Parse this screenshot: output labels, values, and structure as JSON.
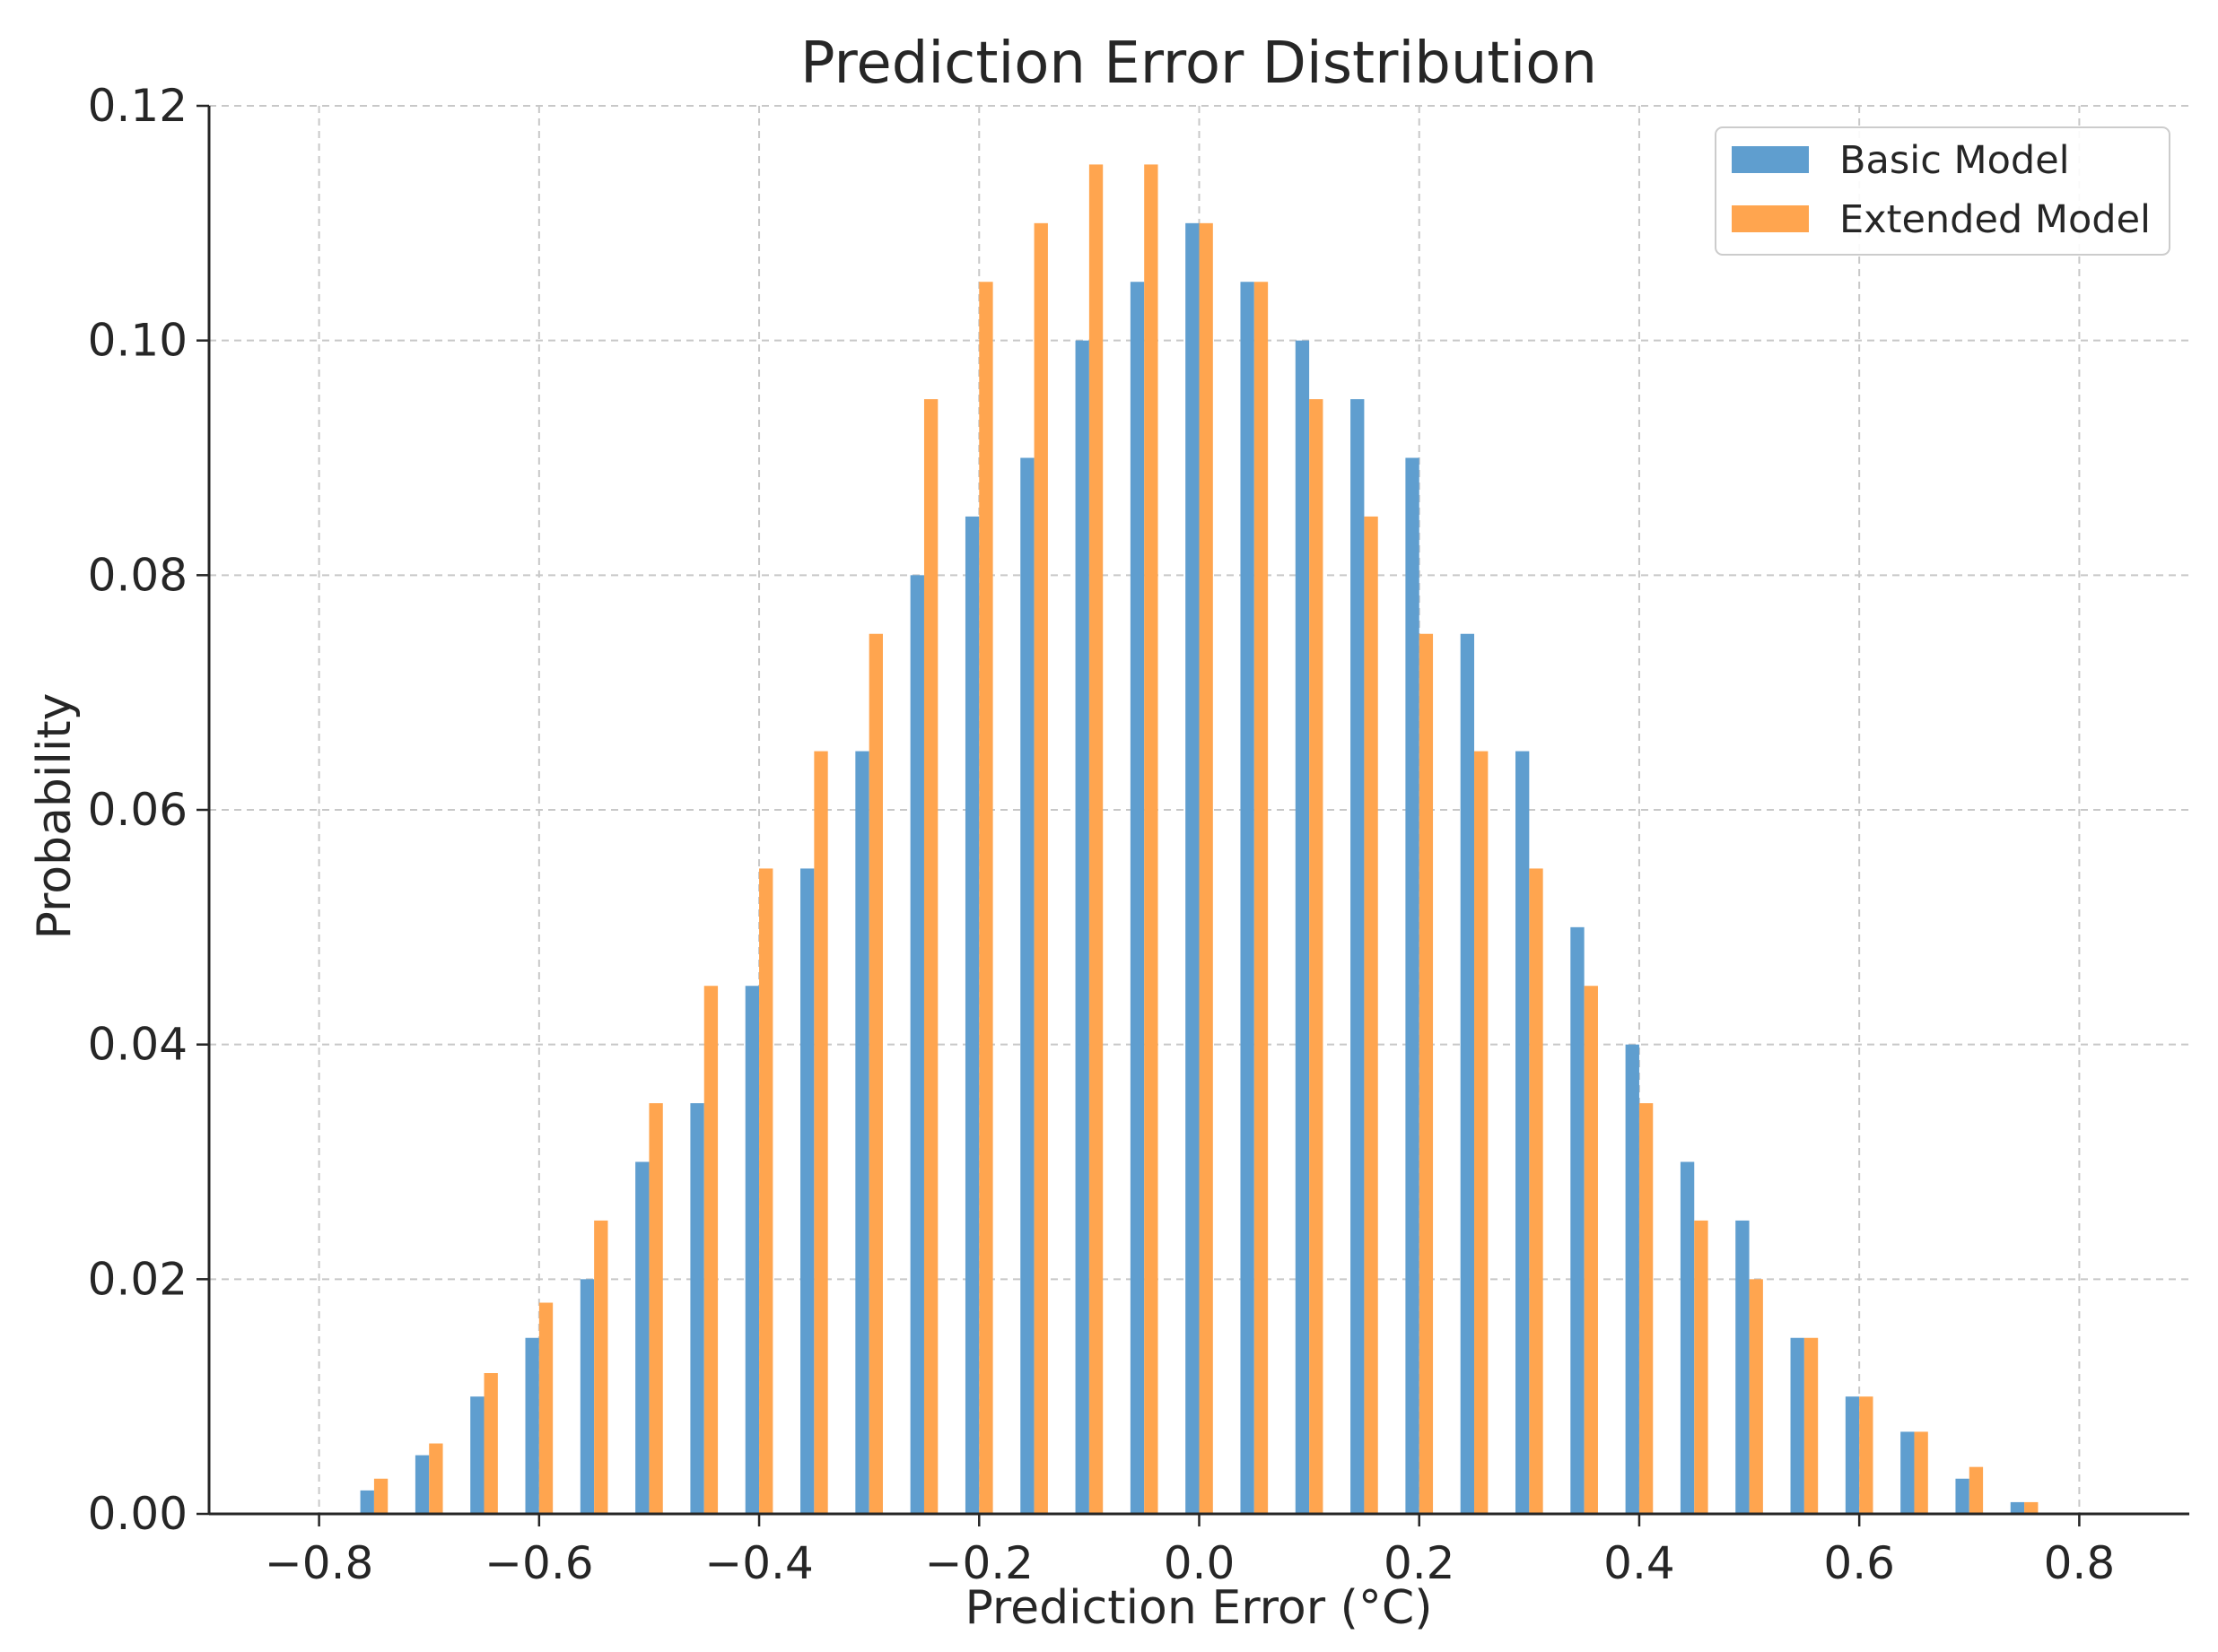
{
  "chart_data": {
    "type": "bar",
    "title": "Prediction Error Distribution",
    "xlabel": "Prediction Error (°C)",
    "ylabel": "Probability",
    "xlim": [
      -0.9,
      0.9
    ],
    "ylim": [
      0.0,
      0.12
    ],
    "xticks": [
      -0.8,
      -0.6,
      -0.4,
      -0.2,
      0.0,
      0.2,
      0.4,
      0.6,
      0.8
    ],
    "xtick_labels": [
      "−0.8",
      "−0.6",
      "−0.4",
      "−0.2",
      "0.0",
      "0.2",
      "0.4",
      "0.6",
      "0.8"
    ],
    "yticks": [
      0.0,
      0.02,
      0.04,
      0.06,
      0.08,
      0.1,
      0.12
    ],
    "ytick_labels": [
      "0.00",
      "0.02",
      "0.04",
      "0.06",
      "0.08",
      "0.10",
      "0.12"
    ],
    "grid": true,
    "legend_position": "top-right",
    "bin_centers": [
      -0.75,
      -0.7,
      -0.65,
      -0.6,
      -0.55,
      -0.5,
      -0.45,
      -0.4,
      -0.35,
      -0.3,
      -0.25,
      -0.2,
      -0.15,
      -0.1,
      -0.05,
      0.0,
      0.05,
      0.1,
      0.15,
      0.2,
      0.25,
      0.3,
      0.35,
      0.4,
      0.45,
      0.5,
      0.55,
      0.6,
      0.65,
      0.7,
      0.75,
      0.8
    ],
    "bar_width": 0.0125,
    "series": [
      {
        "name": "Basic Model",
        "color": "#5f9ecf",
        "offset": -0.00625,
        "values": [
          0.002,
          0.005,
          0.01,
          0.015,
          0.02,
          0.03,
          0.035,
          0.045,
          0.055,
          0.065,
          0.08,
          0.085,
          0.09,
          0.1,
          0.105,
          0.11,
          0.105,
          0.1,
          0.095,
          0.09,
          0.075,
          0.065,
          0.05,
          0.04,
          0.03,
          0.025,
          0.015,
          0.01,
          0.007,
          0.003,
          0.001,
          0.0
        ]
      },
      {
        "name": "Extended Model",
        "color": "#ffa54f",
        "offset": 0.00625,
        "values": [
          0.003,
          0.006,
          0.012,
          0.018,
          0.025,
          0.035,
          0.045,
          0.055,
          0.065,
          0.075,
          0.095,
          0.105,
          0.11,
          0.115,
          0.115,
          0.11,
          0.105,
          0.095,
          0.085,
          0.075,
          0.065,
          0.055,
          0.045,
          0.035,
          0.025,
          0.02,
          0.015,
          0.01,
          0.007,
          0.004,
          0.001,
          0.0
        ]
      }
    ]
  }
}
